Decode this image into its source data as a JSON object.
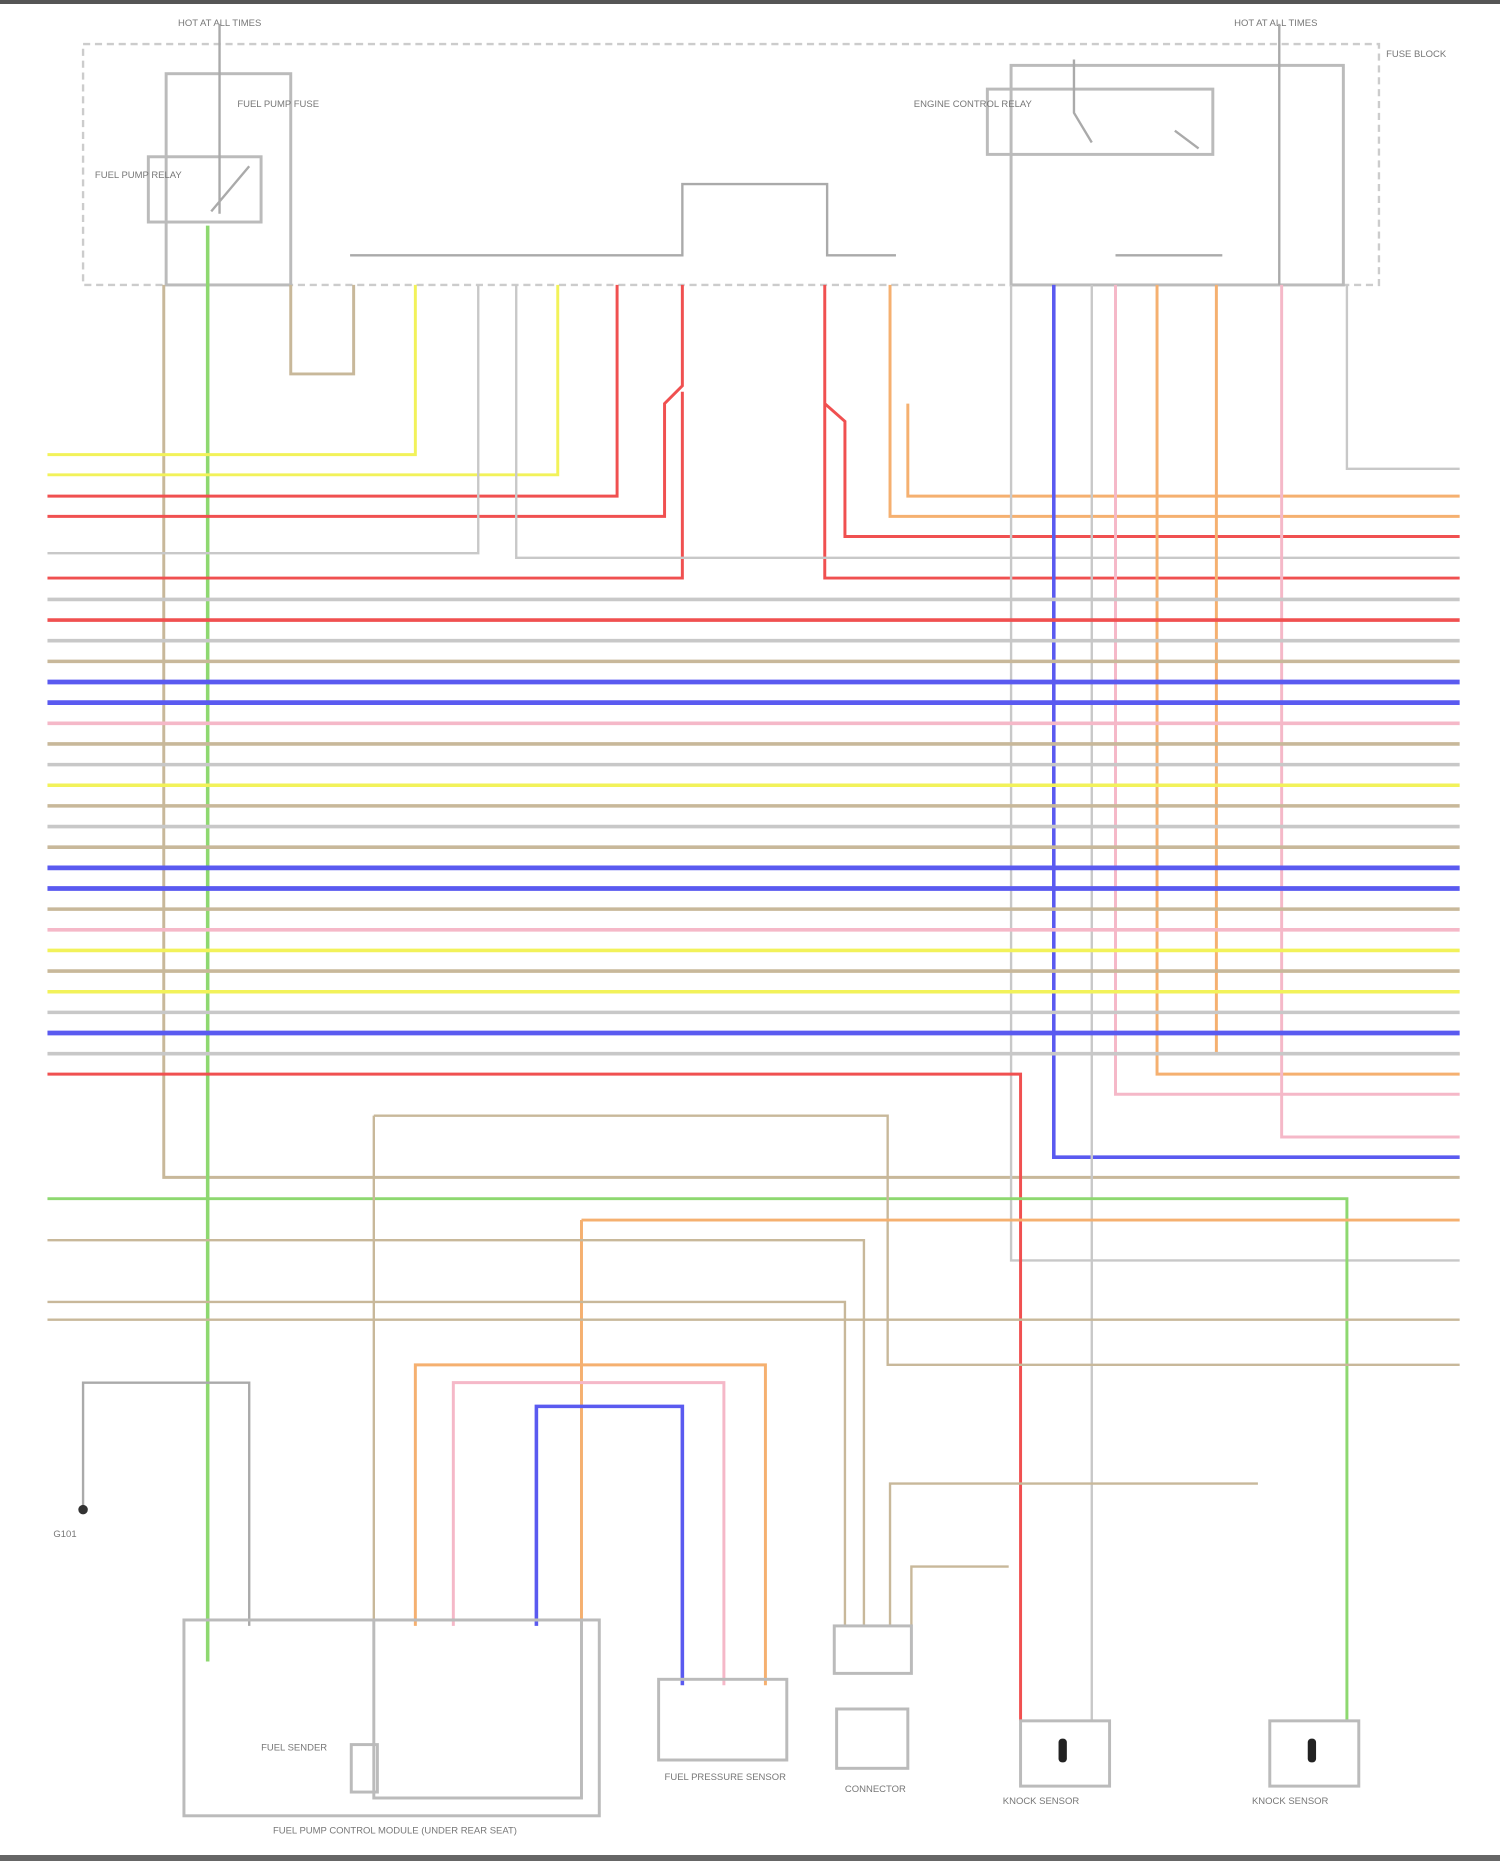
{
  "diagram": {
    "power_left": "HOT AT ALL TIMES",
    "power_right": "HOT AT ALL TIMES",
    "fuse_box": "FUSE BLOCK",
    "fuel_pump_relay": "FUEL PUMP RELAY",
    "engine_control_relay": "ENGINE CONTROL RELAY",
    "fuel_pump_fuse": "FUEL PUMP FUSE",
    "ground_label": "G101",
    "components": {
      "fuel_pump_module": "FUEL PUMP CONTROL MODULE (UNDER REAR SEAT)",
      "fuel_sender": "FUEL SENDER",
      "fuel_pressure_sensor": "FUEL PRESSURE SENSOR",
      "connector": "CONNECTOR",
      "knock_sensor_1": "KNOCK SENSOR",
      "knock_sensor_2": "KNOCK SENSOR"
    },
    "colors": {
      "yellow": "#f2f25a",
      "red": "#f05050",
      "gray": "#c8c8c8",
      "tan": "#c8b89a",
      "blue": "#5a5af0",
      "pink": "#f5b8c8",
      "orange": "#f5b070",
      "green": "#8ed870"
    },
    "bus_wires": [
      "gray",
      "red",
      "gray",
      "tan",
      "blue",
      "blue",
      "pink",
      "tan",
      "gray",
      "yellow",
      "tan",
      "gray",
      "tan",
      "blue",
      "blue",
      "tan",
      "pink",
      "yellow",
      "tan",
      "yellow",
      "gray",
      "blue",
      "gray",
      "red",
      "tan",
      "red"
    ],
    "lower_wires": [
      "tan",
      "green",
      "orange",
      "tan",
      "gray",
      "tan",
      "tan",
      "pink"
    ]
  }
}
